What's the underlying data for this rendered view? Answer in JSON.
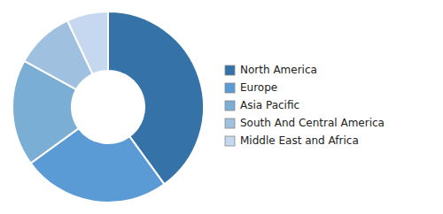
{
  "chart_data": {
    "type": "donut",
    "categories": [
      "North America",
      "Europe",
      "Asia Pacific",
      "South And Central America",
      "Middle East and Africa"
    ],
    "values": [
      40,
      25,
      18,
      10,
      7
    ],
    "colors": [
      "#3472a8",
      "#5b9bd5",
      "#7baed4",
      "#a0c0e0",
      "#c5d8ef"
    ],
    "legend": "right"
  }
}
